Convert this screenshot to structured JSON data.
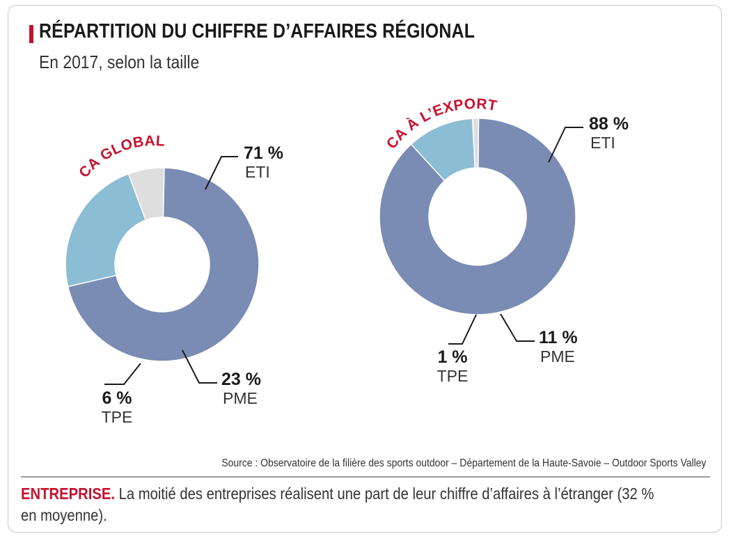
{
  "title": "RÉPARTITION DU CHIFFRE D’AFFAIRES RÉGIONAL",
  "subtitle": "En 2017, selon la taille",
  "colors": {
    "eti": "#7a8cb3",
    "pme": "#8bbdd4",
    "tpe": "#dedede",
    "accent": "#c8102e",
    "text": "#222222"
  },
  "chart_data": [
    {
      "type": "pie",
      "style": "donut",
      "title": "CA GLOBAL",
      "categories": [
        "ETI",
        "PME",
        "TPE"
      ],
      "values": [
        71,
        23,
        6
      ],
      "value_labels": [
        "71 %",
        "23 %",
        "6 %"
      ]
    },
    {
      "type": "pie",
      "style": "donut",
      "title": "CA À L’EXPORT",
      "categories": [
        "ETI",
        "PME",
        "TPE"
      ],
      "values": [
        88,
        11,
        1
      ],
      "value_labels": [
        "88 %",
        "11 %",
        "1 %"
      ]
    }
  ],
  "source": "Source : Observatoire de la filière des sports outdoor – Département de la Haute-Savoie – Outdoor Sports Valley",
  "footnote": {
    "keyword": "ENTREPRISE.",
    "text": " La moitié des entreprises réalisent une part de leur chiffre d’affaires à l’étranger (32 % en moyenne)."
  }
}
